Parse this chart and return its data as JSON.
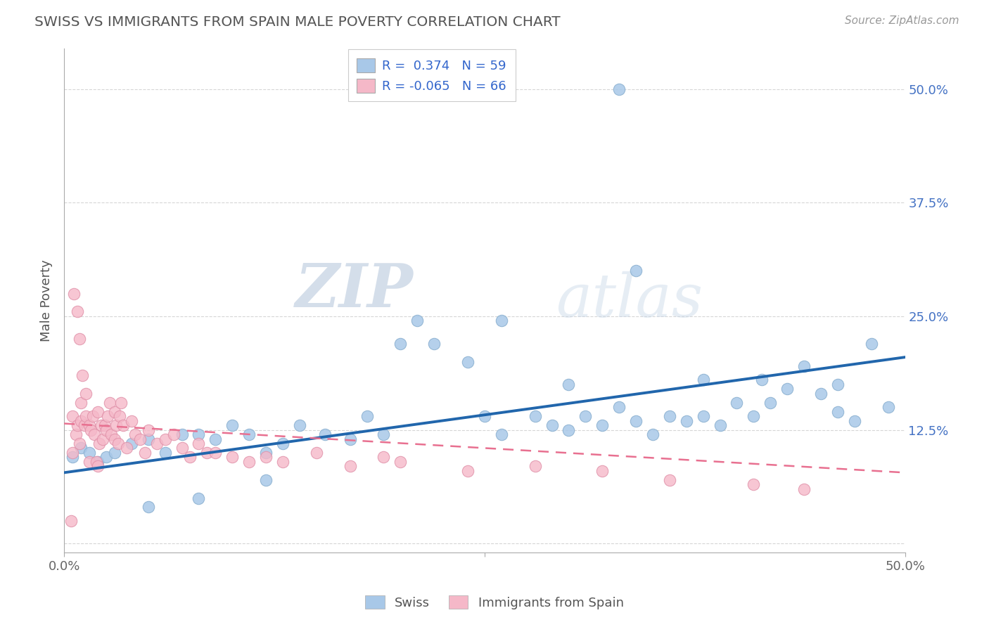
{
  "title": "SWISS VS IMMIGRANTS FROM SPAIN MALE POVERTY CORRELATION CHART",
  "source": "Source: ZipAtlas.com",
  "ylabel": "Male Poverty",
  "xlim": [
    0.0,
    0.5
  ],
  "ylim": [
    -0.01,
    0.545
  ],
  "legend_r1": "R =  0.374",
  "legend_n1": "N = 59",
  "legend_r2": "R = -0.065",
  "legend_n2": "N = 66",
  "blue_color": "#a8c8e8",
  "pink_color": "#f5b8c8",
  "blue_line_color": "#2166ac",
  "pink_line_color": "#e87090",
  "background_color": "#ffffff",
  "grid_color": "#cccccc",
  "title_color": "#555555",
  "watermark_zip": "ZIP",
  "watermark_atlas": "atlas",
  "yticks": [
    0.0,
    0.125,
    0.25,
    0.375,
    0.5
  ],
  "blue_line_x0": 0.0,
  "blue_line_y0": 0.078,
  "blue_line_x1": 0.5,
  "blue_line_y1": 0.205,
  "pink_line_x0": 0.0,
  "pink_line_y0": 0.132,
  "pink_line_x1": 0.5,
  "pink_line_y1": 0.078,
  "swiss_x": [
    0.005,
    0.01,
    0.015,
    0.02,
    0.025,
    0.03,
    0.04,
    0.05,
    0.06,
    0.07,
    0.08,
    0.09,
    0.1,
    0.11,
    0.12,
    0.13,
    0.14,
    0.155,
    0.17,
    0.18,
    0.19,
    0.2,
    0.22,
    0.24,
    0.25,
    0.26,
    0.28,
    0.29,
    0.3,
    0.31,
    0.32,
    0.33,
    0.34,
    0.35,
    0.36,
    0.37,
    0.38,
    0.39,
    0.4,
    0.41,
    0.415,
    0.42,
    0.43,
    0.44,
    0.45,
    0.46,
    0.46,
    0.47,
    0.48,
    0.49,
    0.21,
    0.26,
    0.3,
    0.34,
    0.38,
    0.12,
    0.08,
    0.05,
    0.33
  ],
  "swiss_y": [
    0.095,
    0.105,
    0.1,
    0.09,
    0.095,
    0.1,
    0.11,
    0.115,
    0.1,
    0.12,
    0.12,
    0.115,
    0.13,
    0.12,
    0.1,
    0.11,
    0.13,
    0.12,
    0.115,
    0.14,
    0.12,
    0.22,
    0.22,
    0.2,
    0.14,
    0.12,
    0.14,
    0.13,
    0.125,
    0.14,
    0.13,
    0.15,
    0.135,
    0.12,
    0.14,
    0.135,
    0.14,
    0.13,
    0.155,
    0.14,
    0.18,
    0.155,
    0.17,
    0.195,
    0.165,
    0.175,
    0.145,
    0.135,
    0.22,
    0.15,
    0.245,
    0.245,
    0.175,
    0.3,
    0.18,
    0.07,
    0.05,
    0.04,
    0.5
  ],
  "spain_x": [
    0.005,
    0.005,
    0.007,
    0.008,
    0.009,
    0.01,
    0.01,
    0.012,
    0.013,
    0.015,
    0.015,
    0.016,
    0.017,
    0.018,
    0.019,
    0.02,
    0.02,
    0.021,
    0.022,
    0.023,
    0.024,
    0.025,
    0.026,
    0.027,
    0.028,
    0.03,
    0.03,
    0.031,
    0.032,
    0.033,
    0.034,
    0.035,
    0.037,
    0.04,
    0.042,
    0.045,
    0.048,
    0.05,
    0.055,
    0.06,
    0.065,
    0.07,
    0.075,
    0.08,
    0.085,
    0.09,
    0.1,
    0.11,
    0.12,
    0.13,
    0.15,
    0.17,
    0.19,
    0.2,
    0.24,
    0.28,
    0.32,
    0.36,
    0.41,
    0.44,
    0.006,
    0.008,
    0.009,
    0.011,
    0.013,
    0.004
  ],
  "spain_y": [
    0.14,
    0.1,
    0.12,
    0.13,
    0.11,
    0.155,
    0.135,
    0.13,
    0.14,
    0.13,
    0.09,
    0.125,
    0.14,
    0.12,
    0.09,
    0.145,
    0.085,
    0.11,
    0.13,
    0.115,
    0.13,
    0.125,
    0.14,
    0.155,
    0.12,
    0.145,
    0.115,
    0.13,
    0.11,
    0.14,
    0.155,
    0.13,
    0.105,
    0.135,
    0.12,
    0.115,
    0.1,
    0.125,
    0.11,
    0.115,
    0.12,
    0.105,
    0.095,
    0.11,
    0.1,
    0.1,
    0.095,
    0.09,
    0.095,
    0.09,
    0.1,
    0.085,
    0.095,
    0.09,
    0.08,
    0.085,
    0.08,
    0.07,
    0.065,
    0.06,
    0.275,
    0.255,
    0.225,
    0.185,
    0.165,
    0.025
  ]
}
